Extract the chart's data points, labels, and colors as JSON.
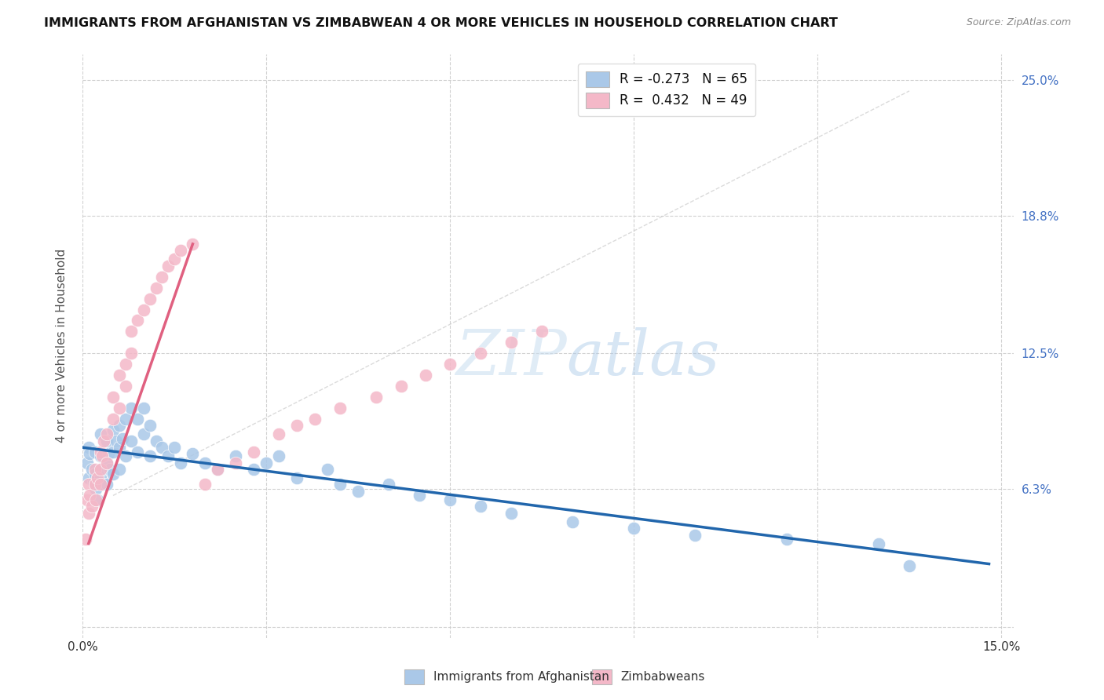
{
  "title": "IMMIGRANTS FROM AFGHANISTAN VS ZIMBABWEAN 4 OR MORE VEHICLES IN HOUSEHOLD CORRELATION CHART",
  "source": "Source: ZipAtlas.com",
  "ylabel": "4 or more Vehicles in Household",
  "xlim": [
    0.0,
    0.152
  ],
  "ylim": [
    -0.005,
    0.262
  ],
  "xticks": [
    0.0,
    0.03,
    0.06,
    0.09,
    0.12,
    0.15
  ],
  "xtick_labels": [
    "0.0%",
    "",
    "",
    "",
    "",
    "15.0%"
  ],
  "yticks": [
    0.0,
    0.063,
    0.125,
    0.188,
    0.25
  ],
  "ytick_labels_right": [
    "",
    "6.3%",
    "12.5%",
    "18.8%",
    "25.0%"
  ],
  "blue_color": "#aac8e8",
  "pink_color": "#f4b8c8",
  "blue_line_color": "#2166ac",
  "pink_line_color": "#e06080",
  "blue_r": -0.273,
  "blue_n": 65,
  "pink_r": 0.432,
  "pink_n": 49,
  "watermark_zip": "ZIP",
  "watermark_atlas": "atlas",
  "legend_blue_label": "Immigrants from Afghanistan",
  "legend_pink_label": "Zimbabweans",
  "blue_x": [
    0.0008,
    0.001,
    0.001,
    0.0012,
    0.0015,
    0.0018,
    0.002,
    0.002,
    0.0022,
    0.0025,
    0.003,
    0.003,
    0.003,
    0.0032,
    0.0035,
    0.004,
    0.004,
    0.004,
    0.0042,
    0.0045,
    0.005,
    0.005,
    0.005,
    0.0055,
    0.006,
    0.006,
    0.006,
    0.0065,
    0.007,
    0.007,
    0.008,
    0.008,
    0.009,
    0.009,
    0.01,
    0.01,
    0.011,
    0.011,
    0.012,
    0.013,
    0.014,
    0.015,
    0.016,
    0.018,
    0.02,
    0.022,
    0.025,
    0.028,
    0.03,
    0.032,
    0.035,
    0.04,
    0.042,
    0.045,
    0.05,
    0.055,
    0.06,
    0.065,
    0.07,
    0.08,
    0.09,
    0.1,
    0.115,
    0.13,
    0.135
  ],
  "blue_y": [
    0.075,
    0.068,
    0.082,
    0.079,
    0.072,
    0.066,
    0.08,
    0.07,
    0.063,
    0.058,
    0.088,
    0.078,
    0.068,
    0.072,
    0.065,
    0.085,
    0.075,
    0.065,
    0.079,
    0.072,
    0.09,
    0.08,
    0.07,
    0.085,
    0.092,
    0.082,
    0.072,
    0.086,
    0.095,
    0.078,
    0.1,
    0.085,
    0.095,
    0.08,
    0.1,
    0.088,
    0.092,
    0.078,
    0.085,
    0.082,
    0.078,
    0.082,
    0.075,
    0.079,
    0.075,
    0.072,
    0.078,
    0.072,
    0.075,
    0.078,
    0.068,
    0.072,
    0.065,
    0.062,
    0.065,
    0.06,
    0.058,
    0.055,
    0.052,
    0.048,
    0.045,
    0.042,
    0.04,
    0.038,
    0.028
  ],
  "pink_x": [
    0.0005,
    0.0008,
    0.001,
    0.001,
    0.0012,
    0.0015,
    0.002,
    0.002,
    0.0022,
    0.0025,
    0.003,
    0.003,
    0.003,
    0.0032,
    0.0035,
    0.004,
    0.004,
    0.005,
    0.005,
    0.006,
    0.006,
    0.007,
    0.007,
    0.008,
    0.008,
    0.009,
    0.01,
    0.011,
    0.012,
    0.013,
    0.014,
    0.015,
    0.016,
    0.018,
    0.02,
    0.022,
    0.025,
    0.028,
    0.032,
    0.035,
    0.038,
    0.042,
    0.048,
    0.052,
    0.056,
    0.06,
    0.065,
    0.07,
    0.075
  ],
  "pink_y": [
    0.04,
    0.058,
    0.052,
    0.065,
    0.06,
    0.055,
    0.072,
    0.065,
    0.058,
    0.068,
    0.08,
    0.072,
    0.065,
    0.078,
    0.085,
    0.088,
    0.075,
    0.095,
    0.105,
    0.1,
    0.115,
    0.12,
    0.11,
    0.125,
    0.135,
    0.14,
    0.145,
    0.15,
    0.155,
    0.16,
    0.165,
    0.168,
    0.172,
    0.175,
    0.065,
    0.072,
    0.075,
    0.08,
    0.088,
    0.092,
    0.095,
    0.1,
    0.105,
    0.11,
    0.115,
    0.12,
    0.125,
    0.13,
    0.135
  ]
}
